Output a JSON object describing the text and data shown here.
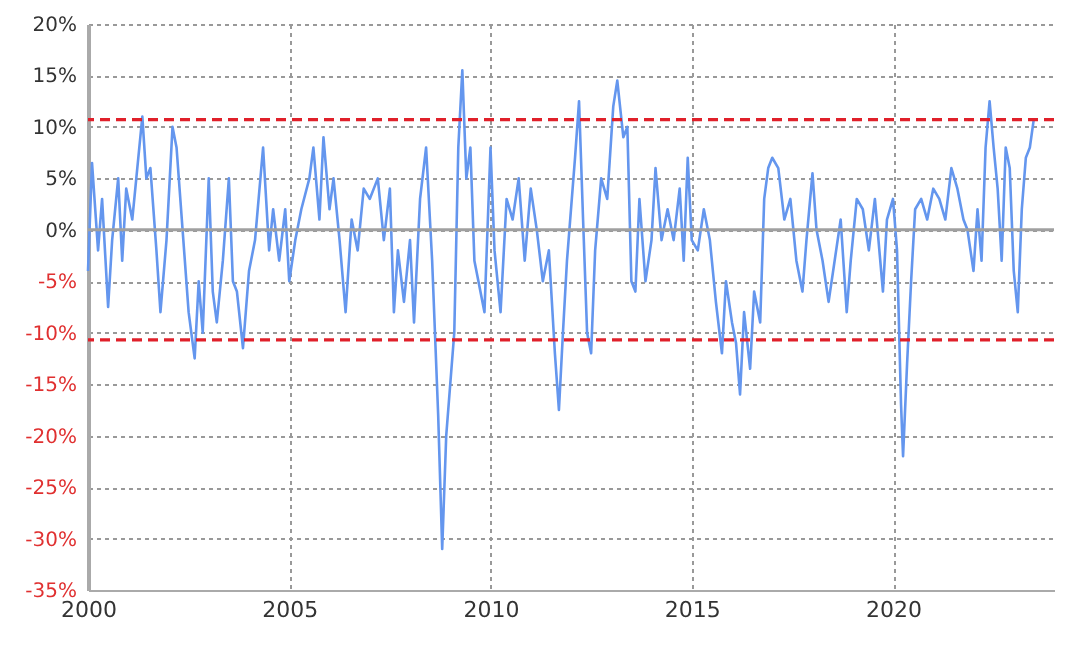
{
  "chart_data": {
    "type": "line",
    "xlim": [
      2000,
      2024
    ],
    "xticks": [
      2000,
      2005,
      2010,
      2015,
      2020
    ],
    "ylim": [
      -35,
      20
    ],
    "yticks": [
      {
        "value": -35,
        "label": "-35%"
      },
      {
        "value": -30,
        "label": "-30%"
      },
      {
        "value": -25,
        "label": "-25%"
      },
      {
        "value": -20,
        "label": "-20%"
      },
      {
        "value": -15,
        "label": "-15%"
      },
      {
        "value": -10,
        "label": "-10%"
      },
      {
        "value": -5,
        "label": "-5%"
      },
      {
        "value": 0,
        "label": "0%"
      },
      {
        "value": 5,
        "label": "5%"
      },
      {
        "value": 10,
        "label": "10%"
      },
      {
        "value": 15,
        "label": "15%"
      },
      {
        "value": 20,
        "label": "20%"
      }
    ],
    "grid": true,
    "marker": "none",
    "line_style": "solid",
    "ref_lines": [
      {
        "axis": "y",
        "value": 0,
        "color": "#a0a0a0",
        "line_style": "solid"
      },
      {
        "axis": "y",
        "value": 10.7,
        "color": "#e0202a",
        "line_style": "dashed"
      },
      {
        "axis": "y",
        "value": -10.7,
        "color": "#e0202a",
        "line_style": "dashed"
      }
    ],
    "series": [
      {
        "color": "#6496ee",
        "x": [
          2000.0,
          2000.1,
          2000.25,
          2000.35,
          2000.5,
          2000.6,
          2000.75,
          2000.85,
          2000.95,
          2001.1,
          2001.2,
          2001.35,
          2001.45,
          2001.55,
          2001.7,
          2001.8,
          2001.95,
          2002.1,
          2002.2,
          2002.35,
          2002.5,
          2002.65,
          2002.75,
          2002.85,
          2003.0,
          2003.1,
          2003.2,
          2003.35,
          2003.5,
          2003.6,
          2003.7,
          2003.85,
          2004.0,
          2004.15,
          2004.35,
          2004.5,
          2004.6,
          2004.75,
          2004.9,
          2005.0,
          2005.15,
          2005.3,
          2005.5,
          2005.6,
          2005.75,
          2005.85,
          2006.0,
          2006.1,
          2006.25,
          2006.4,
          2006.55,
          2006.7,
          2006.85,
          2007.0,
          2007.2,
          2007.35,
          2007.5,
          2007.6,
          2007.7,
          2007.85,
          2008.0,
          2008.1,
          2008.25,
          2008.4,
          2008.55,
          2008.7,
          2008.8,
          2008.9,
          2009.0,
          2009.1,
          2009.2,
          2009.3,
          2009.4,
          2009.5,
          2009.6,
          2009.7,
          2009.85,
          2010.0,
          2010.1,
          2010.25,
          2010.4,
          2010.55,
          2010.7,
          2010.85,
          2011.0,
          2011.15,
          2011.3,
          2011.45,
          2011.6,
          2011.7,
          2011.8,
          2011.9,
          2012.1,
          2012.2,
          2012.3,
          2012.4,
          2012.5,
          2012.6,
          2012.75,
          2012.9,
          2013.05,
          2013.15,
          2013.3,
          2013.4,
          2013.5,
          2013.6,
          2013.7,
          2013.85,
          2014.0,
          2014.1,
          2014.25,
          2014.4,
          2014.55,
          2014.7,
          2014.8,
          2014.9,
          2015.0,
          2015.15,
          2015.3,
          2015.45,
          2015.6,
          2015.75,
          2015.85,
          2016.0,
          2016.1,
          2016.2,
          2016.3,
          2016.45,
          2016.55,
          2016.7,
          2016.8,
          2016.9,
          2017.0,
          2017.15,
          2017.3,
          2017.45,
          2017.6,
          2017.75,
          2017.85,
          2018.0,
          2018.1,
          2018.25,
          2018.4,
          2018.55,
          2018.7,
          2018.85,
          2018.95,
          2019.1,
          2019.25,
          2019.4,
          2019.55,
          2019.75,
          2019.85,
          2020.0,
          2020.1,
          2020.2,
          2020.25,
          2020.35,
          2020.45,
          2020.55,
          2020.7,
          2020.85,
          2021.0,
          2021.15,
          2021.3,
          2021.45,
          2021.6,
          2021.75,
          2021.85,
          2022.0,
          2022.1,
          2022.2,
          2022.3,
          2022.4,
          2022.5,
          2022.6,
          2022.7,
          2022.8,
          2022.9,
          2023.0,
          2023.1,
          2023.2,
          2023.3,
          2023.4,
          2023.5
        ],
        "values": [
          -4,
          6.5,
          -2,
          3,
          -7.5,
          -1,
          5,
          -3,
          4,
          1,
          5,
          11,
          5,
          6,
          -2,
          -8,
          -1,
          10,
          8,
          0,
          -8,
          -12.5,
          -5,
          -10,
          5,
          -6,
          -9,
          -3,
          5,
          -5,
          -6,
          -11.5,
          -4,
          -1,
          8,
          -2,
          2,
          -3,
          2,
          -5,
          -1,
          2,
          5,
          8,
          1,
          9,
          2,
          5,
          -1,
          -8,
          1,
          -2,
          4,
          3,
          5,
          -1,
          4,
          -8,
          -2,
          -7,
          -1,
          -9,
          3,
          8,
          -3,
          -18,
          -31,
          -20,
          -15,
          -10,
          8,
          15.5,
          5,
          8,
          -3,
          -5,
          -8,
          8,
          -2,
          -8,
          3,
          1,
          5,
          -3,
          4,
          0,
          -5,
          -2,
          -12,
          -17.5,
          -10,
          -3,
          7,
          12.5,
          1,
          -10,
          -12,
          -2,
          5,
          3,
          12,
          14.5,
          9,
          10,
          -5,
          -6,
          3,
          -5,
          -1,
          6,
          -1,
          2,
          -1,
          4,
          -3,
          7,
          -1,
          -2,
          2,
          -1,
          -7,
          -12,
          -5,
          -9,
          -11,
          -16,
          -8,
          -13.5,
          -6,
          -9,
          3,
          6,
          7,
          6,
          1,
          3,
          -3,
          -6,
          -1,
          5.5,
          0,
          -3,
          -7,
          -3,
          1,
          -8,
          -3,
          3,
          2,
          -2,
          3,
          -6,
          1,
          3,
          -2,
          -17,
          -22,
          -13,
          -5,
          2,
          3,
          1,
          4,
          3,
          1,
          6,
          4,
          1,
          0,
          -4,
          2,
          -3,
          8,
          12.5,
          8,
          4,
          -3,
          8,
          6,
          -4,
          -8,
          2,
          7,
          8,
          10.8
        ]
      }
    ]
  }
}
